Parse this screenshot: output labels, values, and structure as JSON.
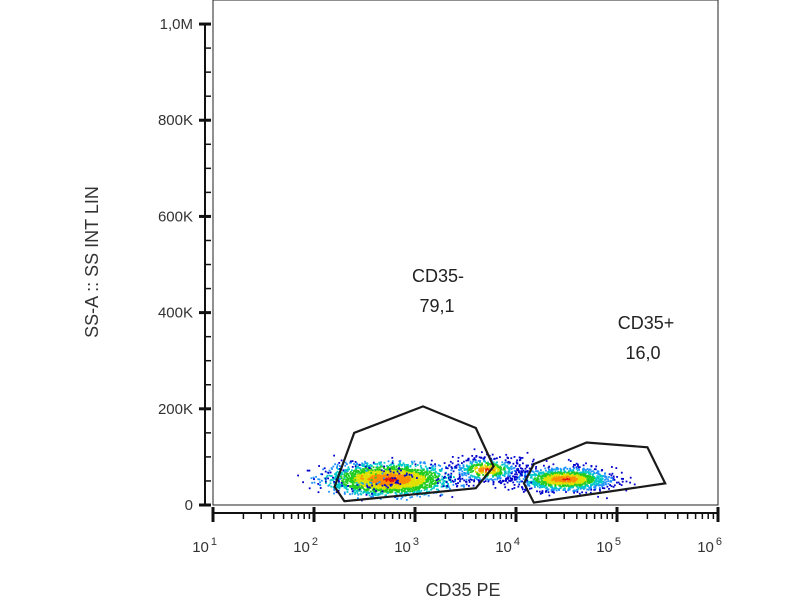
{
  "chart_data": {
    "type": "scatter",
    "subtype": "flow-cytometry-density-plot",
    "xlabel": "CD35 PE",
    "ylabel": "SS-A :: SS INT LIN",
    "x_scale": "log",
    "x_ticks": [
      {
        "base": "10",
        "exp": "1",
        "value": 10
      },
      {
        "base": "10",
        "exp": "2",
        "value": 100
      },
      {
        "base": "10",
        "exp": "3",
        "value": 1000
      },
      {
        "base": "10",
        "exp": "4",
        "value": 10000
      },
      {
        "base": "10",
        "exp": "5",
        "value": 100000
      },
      {
        "base": "10",
        "exp": "6",
        "value": 1000000
      }
    ],
    "xlim": [
      10,
      1000000
    ],
    "y_scale": "linear",
    "y_ticks": [
      {
        "label": "0",
        "value": 0
      },
      {
        "label": "200K",
        "value": 200000
      },
      {
        "label": "400K",
        "value": 400000
      },
      {
        "label": "600K",
        "value": 600000
      },
      {
        "label": "800K",
        "value": 800000
      },
      {
        "label": "1,0M",
        "value": 1000000
      }
    ],
    "ylim": [
      0,
      1050000
    ],
    "density_colors": [
      "#0000cc",
      "#1e90ff",
      "#00c8c8",
      "#22cc22",
      "#e0e000",
      "#ff8c00",
      "#dd1010"
    ],
    "populations": [
      {
        "name": "CD35-",
        "percent": "79,1",
        "center": [
          550,
          55000
        ],
        "gate": [
          [
            160,
            38000
          ],
          [
            250,
            150000
          ],
          [
            1200,
            205000
          ],
          [
            4000,
            160000
          ],
          [
            6000,
            80000
          ],
          [
            4000,
            35000
          ],
          [
            200,
            8000
          ]
        ]
      },
      {
        "name": "CD35+",
        "percent": "16,0",
        "center": [
          30000,
          55000
        ],
        "gate": [
          [
            15000,
            85000
          ],
          [
            50000,
            130000
          ],
          [
            200000,
            120000
          ],
          [
            300000,
            45000
          ],
          [
            15000,
            5000
          ],
          [
            12000,
            45000
          ]
        ]
      }
    ]
  }
}
